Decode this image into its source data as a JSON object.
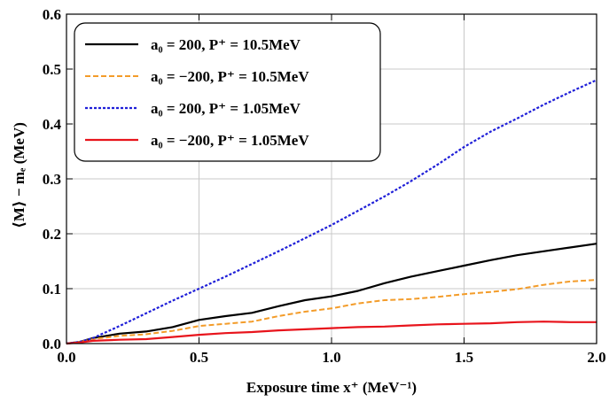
{
  "chart_data": {
    "type": "line",
    "xlabel": "Exposure time x⁺ (MeV⁻¹)",
    "ylabel": "⟨M⟩ − mₑ (MeV)",
    "xlim": [
      0.0,
      2.0
    ],
    "ylim": [
      0.0,
      0.6
    ],
    "x_ticks": [
      "0.0",
      "0.5",
      "1.0",
      "1.5",
      "2.0"
    ],
    "y_ticks": [
      "0.0",
      "0.1",
      "0.2",
      "0.3",
      "0.4",
      "0.5",
      "0.6"
    ],
    "grid": true,
    "legend_position": "top-left",
    "series": [
      {
        "name": "a₀ = 200, P⁺ = 10.5MeV",
        "color": "#000000",
        "style": "solid",
        "x": [
          0.0,
          0.05,
          0.1,
          0.2,
          0.3,
          0.4,
          0.5,
          0.6,
          0.7,
          0.8,
          0.9,
          1.0,
          1.1,
          1.2,
          1.3,
          1.4,
          1.5,
          1.6,
          1.7,
          1.8,
          1.9,
          2.0
        ],
        "y": [
          0.0,
          0.003,
          0.01,
          0.018,
          0.022,
          0.03,
          0.043,
          0.05,
          0.056,
          0.068,
          0.079,
          0.086,
          0.096,
          0.11,
          0.122,
          0.132,
          0.142,
          0.152,
          0.161,
          0.168,
          0.175,
          0.182
        ]
      },
      {
        "name": "a₀ = −200, P⁺ = 10.5MeV",
        "color": "#f39c2a",
        "style": "dashed",
        "x": [
          0.0,
          0.05,
          0.1,
          0.2,
          0.3,
          0.4,
          0.5,
          0.6,
          0.7,
          0.8,
          0.9,
          1.0,
          1.1,
          1.2,
          1.3,
          1.4,
          1.5,
          1.6,
          1.7,
          1.8,
          1.9,
          2.0
        ],
        "y": [
          0.0,
          0.003,
          0.008,
          0.014,
          0.017,
          0.023,
          0.032,
          0.036,
          0.04,
          0.05,
          0.058,
          0.064,
          0.073,
          0.079,
          0.081,
          0.085,
          0.09,
          0.094,
          0.099,
          0.107,
          0.113,
          0.116
        ]
      },
      {
        "name": "a₀ = 200, P⁺ = 1.05MeV",
        "color": "#1f1fd8",
        "style": "dotted",
        "x": [
          0.0,
          0.05,
          0.1,
          0.2,
          0.3,
          0.4,
          0.5,
          0.6,
          0.7,
          0.8,
          0.9,
          1.0,
          1.1,
          1.2,
          1.3,
          1.4,
          1.5,
          1.6,
          1.7,
          1.8,
          1.9,
          2.0
        ],
        "y": [
          0.0,
          0.003,
          0.01,
          0.032,
          0.055,
          0.078,
          0.1,
          0.122,
          0.145,
          0.168,
          0.192,
          0.216,
          0.242,
          0.268,
          0.296,
          0.326,
          0.358,
          0.386,
          0.41,
          0.435,
          0.458,
          0.48
        ]
      },
      {
        "name": "a₀ = −200, P⁺ = 1.05MeV",
        "color": "#e8141c",
        "style": "solid",
        "x": [
          0.0,
          0.05,
          0.1,
          0.2,
          0.3,
          0.4,
          0.5,
          0.6,
          0.7,
          0.8,
          0.9,
          1.0,
          1.1,
          1.2,
          1.3,
          1.4,
          1.5,
          1.6,
          1.7,
          1.8,
          1.9,
          2.0
        ],
        "y": [
          0.0,
          0.002,
          0.005,
          0.007,
          0.008,
          0.012,
          0.016,
          0.019,
          0.021,
          0.024,
          0.026,
          0.028,
          0.03,
          0.031,
          0.033,
          0.035,
          0.036,
          0.037,
          0.039,
          0.04,
          0.039,
          0.039
        ]
      }
    ]
  }
}
